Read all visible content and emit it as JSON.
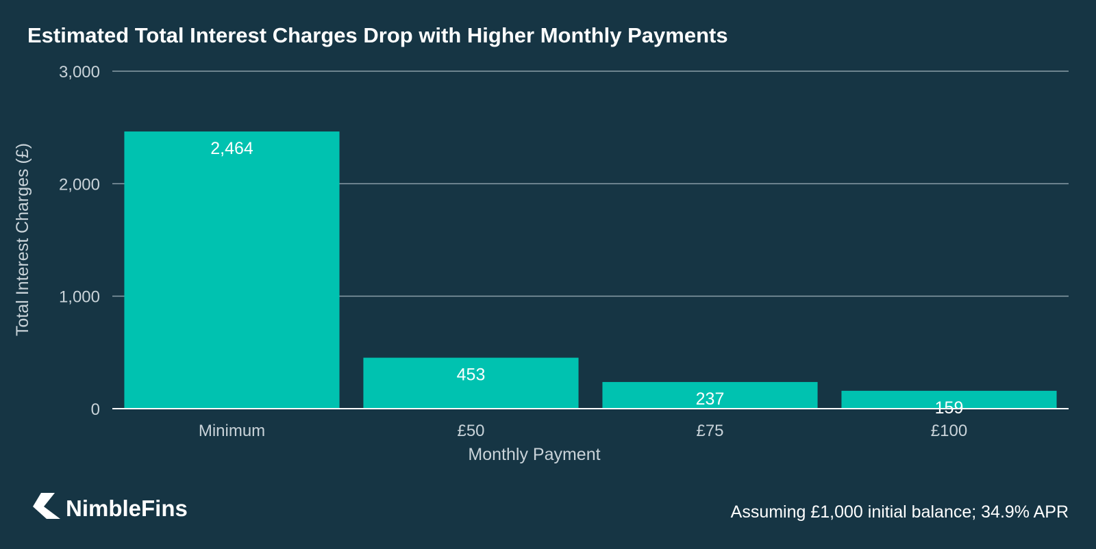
{
  "colors": {
    "background": "#163544",
    "bar": "#00c2b0",
    "grid": "#8a9ea8",
    "axis": "#ffffff"
  },
  "brand": {
    "name": "NimbleFins",
    "logo_icon": "nimblefins-arrow-logo"
  },
  "footnote": "Assuming £1,000 initial balance; 34.9% APR",
  "chart_data": {
    "type": "bar",
    "title": "Estimated Total Interest Charges Drop with Higher Monthly Payments",
    "xlabel": "Monthly Payment",
    "ylabel": "Total Interest Charges (£)",
    "categories": [
      "Minimum",
      "£50",
      "£75",
      "£100"
    ],
    "values": [
      2464,
      453,
      237,
      159
    ],
    "value_labels": [
      "2,464",
      "453",
      "237",
      "159"
    ],
    "ylim": [
      0,
      3000
    ],
    "yticks": [
      0,
      1000,
      2000,
      3000
    ],
    "ytick_labels": [
      "0",
      "1,000",
      "2,000",
      "3,000"
    ],
    "grid": true,
    "legend": "none"
  }
}
